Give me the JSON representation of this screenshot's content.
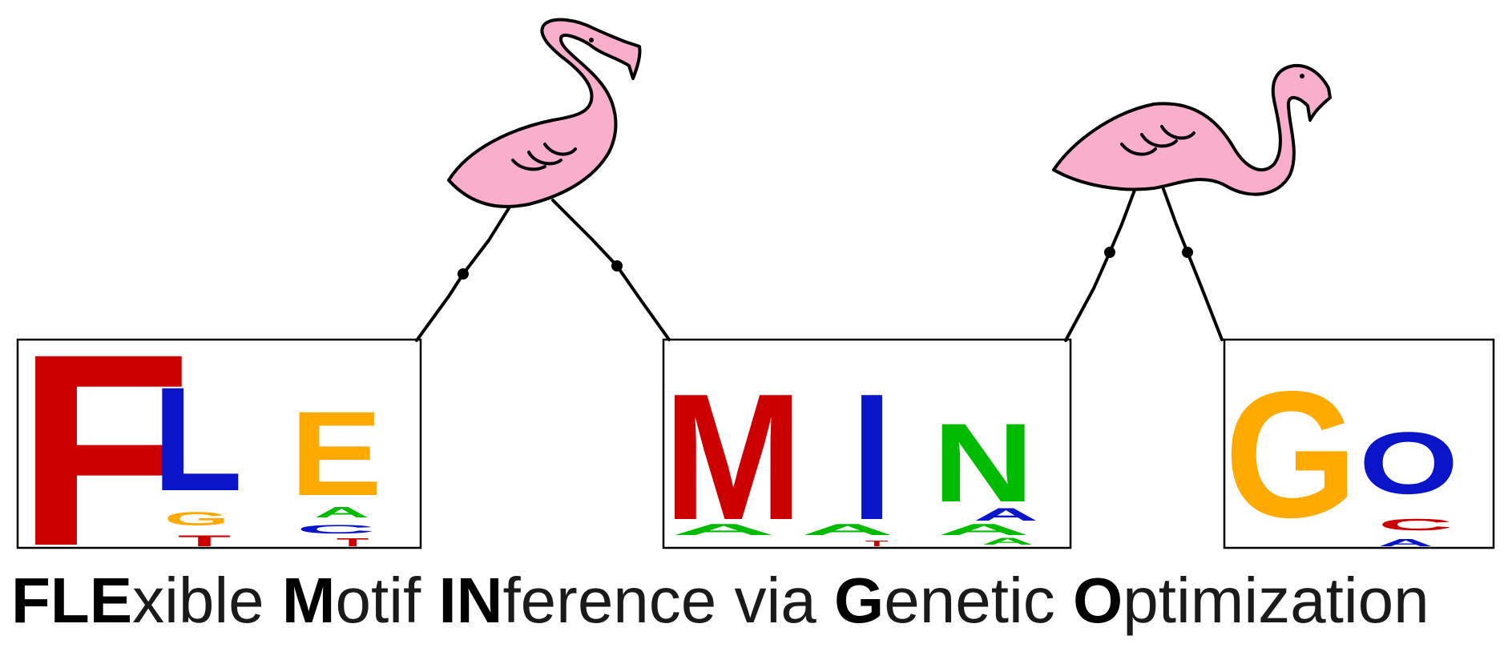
{
  "logo": {
    "letters": [
      {
        "box": 0,
        "char": "F",
        "color": "#cc0000"
      },
      {
        "box": 0,
        "char": "L",
        "color": "#0a14c8"
      },
      {
        "box": 0,
        "char": "E",
        "color": "#ffaa00"
      },
      {
        "box": 1,
        "char": "M",
        "color": "#cc0000"
      },
      {
        "box": 1,
        "char": "I",
        "color": "#0a14c8"
      },
      {
        "box": 1,
        "char": "N",
        "color": "#00bb00"
      },
      {
        "box": 2,
        "char": "G",
        "color": "#ffaa00"
      },
      {
        "box": 2,
        "char": "O",
        "color": "#0a14c8"
      }
    ],
    "small_letters": [
      "G",
      "T",
      "A",
      "C",
      "T",
      "A",
      "A",
      "A",
      "A",
      "C",
      "A",
      "T",
      "C",
      "A"
    ]
  },
  "colors": {
    "flamingo_pink": "#f9aecb",
    "outline": "#000000",
    "nucleotide_A": "#00bb00",
    "nucleotide_C": "#0a14c8",
    "nucleotide_G": "#ffaa00",
    "nucleotide_T": "#cc0000"
  },
  "tagline": {
    "w1_bold": "FLE",
    "w1_rest": "xible",
    "w2_bold": "M",
    "w2_rest": "otif",
    "w3_bold": "IN",
    "w3_rest": "ference",
    "w4": "via",
    "w5_bold": "G",
    "w5_rest": "enetic",
    "w6_bold": "O",
    "w6_rest": "ptimization"
  }
}
